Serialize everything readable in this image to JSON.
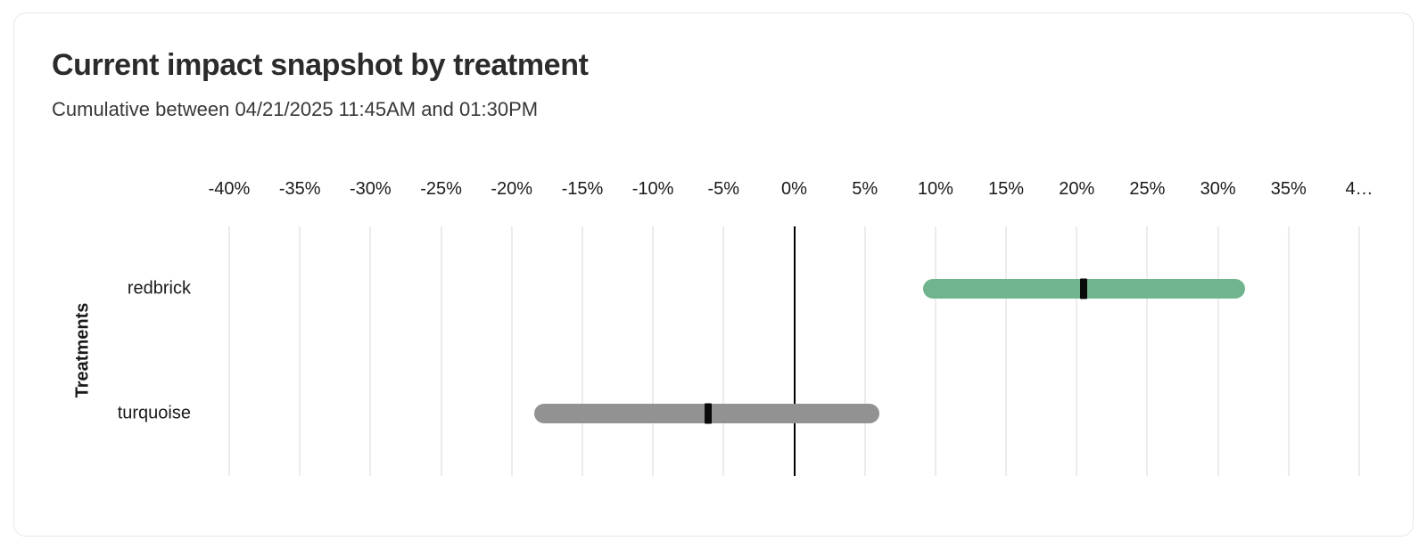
{
  "chart_data": {
    "type": "bar",
    "variant": "horizontal-interval-with-point-estimate",
    "title": "Current impact snapshot by treatment",
    "subtitle": "Cumulative between 04/21/2025 11:45AM and 01:30PM",
    "ylabel": "Treatments",
    "xlabel": "",
    "xlim": [
      -40,
      40
    ],
    "grid": true,
    "legend": "none",
    "x_ticks": [
      {
        "label": "-40%",
        "value": -40
      },
      {
        "label": "-35%",
        "value": -35
      },
      {
        "label": "-30%",
        "value": -30
      },
      {
        "label": "-25%",
        "value": -25
      },
      {
        "label": "-20%",
        "value": -20
      },
      {
        "label": "-15%",
        "value": -15
      },
      {
        "label": "-10%",
        "value": -10
      },
      {
        "label": "-5%",
        "value": -5
      },
      {
        "label": "0%",
        "value": 0
      },
      {
        "label": "5%",
        "value": 5
      },
      {
        "label": "10%",
        "value": 10
      },
      {
        "label": "15%",
        "value": 15
      },
      {
        "label": "20%",
        "value": 20
      },
      {
        "label": "25%",
        "value": 25
      },
      {
        "label": "30%",
        "value": 30
      },
      {
        "label": "35%",
        "value": 35
      },
      {
        "label": "4…",
        "value": 40
      }
    ],
    "categories": [
      "redbrick",
      "turquoise"
    ],
    "series": [
      {
        "name": "redbrick",
        "low": 9.1,
        "high": 31.9,
        "point": 20.5,
        "color": "#6fb48c"
      },
      {
        "name": "turquoise",
        "low": -18.4,
        "high": 6.0,
        "point": -6.1,
        "color": "#929292"
      }
    ],
    "zero_line_color": "#000000",
    "gridline_color": "#ececec",
    "marker_color": "#0a0a0a"
  }
}
